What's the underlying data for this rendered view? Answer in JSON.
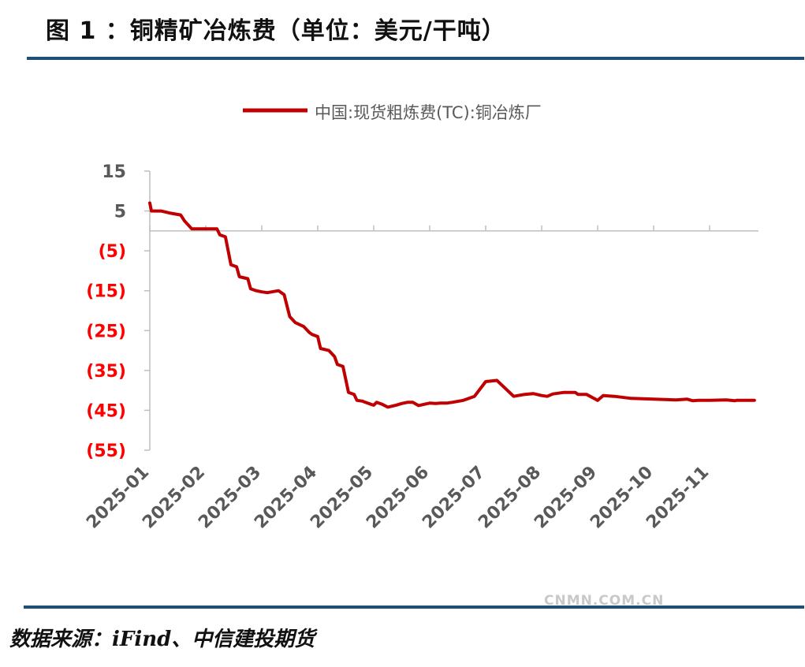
{
  "header": {
    "title": "图 1 ：铜精矿冶炼费（单位：美元/干吨）",
    "rule_color": "#1f4e79"
  },
  "chart_data": {
    "type": "line",
    "title": "",
    "xlabel": "",
    "ylabel": "",
    "ylim": [
      -55,
      15
    ],
    "y_ticks": [
      15,
      5,
      -5,
      -15,
      -25,
      -35,
      -45,
      -55
    ],
    "y_tick_labels": [
      "15",
      "5",
      "(5)",
      "(15)",
      "(25)",
      "(35)",
      "(45)",
      "(55)"
    ],
    "x_tick_labels": [
      "2025-01",
      "2025-02",
      "2025-03",
      "2025-04",
      "2025-05",
      "2025-06",
      "2025-07",
      "2025-08",
      "2025-09",
      "2025-10",
      "2025-11"
    ],
    "legend_position": "top-center",
    "grid": false,
    "series": [
      {
        "name": "中国:现货粗炼费(TC):铜冶炼厂",
        "color": "#c00000",
        "x": [
          0.0,
          0.03,
          0.2,
          0.35,
          0.55,
          0.62,
          0.75,
          1.0,
          1.2,
          1.25,
          1.35,
          1.45,
          1.55,
          1.6,
          1.75,
          1.8,
          1.9,
          2.0,
          2.1,
          2.3,
          2.4,
          2.5,
          2.6,
          2.75,
          2.85,
          2.9,
          3.0,
          3.05,
          3.2,
          3.3,
          3.35,
          3.45,
          3.55,
          3.65,
          3.7,
          3.8,
          3.85,
          3.95,
          4.0,
          4.05,
          4.15,
          4.25,
          4.4,
          4.5,
          4.6,
          4.7,
          4.8,
          4.9,
          5.0,
          5.1,
          5.2,
          5.3,
          5.4,
          5.6,
          5.8,
          6.0,
          6.2,
          6.5,
          6.7,
          6.85,
          7.0,
          7.1,
          7.2,
          7.4,
          7.6,
          7.65,
          7.8,
          8.0,
          8.1,
          8.3,
          8.6,
          9.0,
          9.4,
          9.6,
          9.7,
          9.8,
          10.0,
          10.3,
          10.45,
          10.48,
          10.6,
          10.8
        ],
        "values": [
          7.0,
          5.0,
          5.0,
          4.5,
          4.0,
          2.5,
          0.5,
          0.5,
          0.5,
          -1.0,
          -1.5,
          -8.5,
          -9.0,
          -11.5,
          -12.0,
          -14.5,
          -15.0,
          -15.3,
          -15.5,
          -15.0,
          -16.0,
          -21.5,
          -23.0,
          -24.0,
          -25.5,
          -26.0,
          -26.5,
          -29.5,
          -30.0,
          -31.5,
          -33.5,
          -34.0,
          -40.5,
          -41.0,
          -42.5,
          -42.7,
          -43.0,
          -43.5,
          -43.7,
          -43.0,
          -43.5,
          -44.2,
          -43.7,
          -43.3,
          -43.0,
          -43.0,
          -43.8,
          -43.5,
          -43.2,
          -43.3,
          -43.2,
          -43.2,
          -43.0,
          -42.5,
          -41.5,
          -37.8,
          -37.5,
          -41.5,
          -41.0,
          -40.8,
          -41.3,
          -41.5,
          -40.9,
          -40.5,
          -40.5,
          -41.0,
          -41.0,
          -42.5,
          -41.3,
          -41.5,
          -42.0,
          -42.2,
          -42.4,
          -42.2,
          -42.6,
          -42.5,
          -42.5,
          -42.4,
          -42.6,
          -42.5,
          -42.5,
          -42.5
        ]
      }
    ]
  },
  "watermark": "CNMN.COM.CN",
  "source": "数据来源：iFind、中信建投期货"
}
